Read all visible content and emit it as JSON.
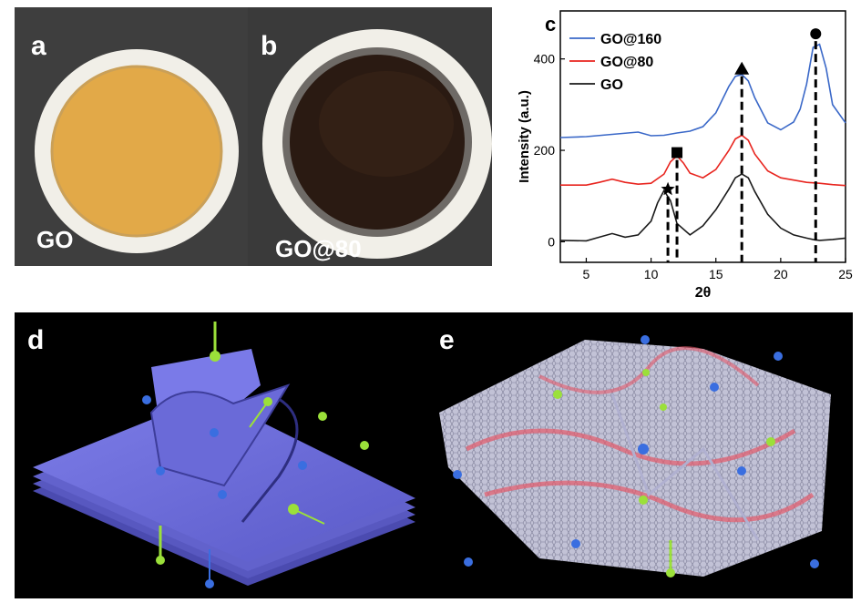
{
  "panels": {
    "a": {
      "letter": "a",
      "label": "GO"
    },
    "b": {
      "letter": "b",
      "label": "GO@80"
    },
    "c": {
      "letter": "c"
    },
    "d": {
      "letter": "d"
    },
    "e": {
      "letter": "e"
    }
  },
  "colors": {
    "go": "#1a1a1a",
    "go80": "#e8251f",
    "go160": "#3a68c8",
    "membrane_go": "#e2a948",
    "membrane_go80": "#2a1a12",
    "sheet_d": "#6f6fe0",
    "sheet_e": "#d8d8ee",
    "ball_green": "#9be03a",
    "ball_blue": "#3a6ee0"
  },
  "chart_data": {
    "type": "line",
    "title": "",
    "xlabel": "2θ",
    "ylabel": "Intensity (a.u.)",
    "xlim": [
      3,
      25
    ],
    "ylim": [
      -45,
      505
    ],
    "xticks": [
      5,
      10,
      15,
      20,
      25
    ],
    "yticks": [
      0,
      200,
      400
    ],
    "legend": [
      "GO@160",
      "GO@80",
      "GO"
    ],
    "series": [
      {
        "name": "GO",
        "x": [
          3,
          5,
          6,
          7,
          8,
          9,
          10,
          10.5,
          11,
          11.5,
          12,
          13,
          14,
          15,
          16,
          16.5,
          17,
          17.5,
          18,
          19,
          20,
          21,
          22,
          22.5,
          23,
          24,
          25
        ],
        "values": [
          3,
          2,
          10,
          18,
          10,
          15,
          45,
          85,
          112,
          90,
          40,
          15,
          35,
          70,
          115,
          140,
          148,
          140,
          110,
          60,
          30,
          15,
          8,
          5,
          3,
          5,
          8
        ]
      },
      {
        "name": "GO@80",
        "x": [
          3,
          5,
          6,
          7,
          8,
          9,
          10,
          11,
          11.5,
          12,
          12.5,
          13,
          14,
          15,
          16,
          16.5,
          17,
          17.5,
          18,
          19,
          20,
          21,
          22,
          23,
          24,
          25
        ],
        "values": [
          124,
          124,
          130,
          137,
          130,
          126,
          128,
          148,
          175,
          188,
          172,
          150,
          140,
          158,
          200,
          225,
          233,
          222,
          192,
          155,
          140,
          135,
          130,
          128,
          125,
          123
        ]
      },
      {
        "name": "GO@160",
        "x": [
          3,
          5,
          7,
          9,
          10,
          11,
          12,
          13,
          14,
          15,
          16,
          16.5,
          17,
          17.5,
          18,
          19,
          20,
          21,
          21.5,
          22,
          22.5,
          23,
          23.5,
          24,
          25
        ],
        "values": [
          228,
          230,
          235,
          240,
          232,
          233,
          238,
          242,
          252,
          282,
          340,
          362,
          366,
          352,
          315,
          260,
          245,
          262,
          290,
          345,
          425,
          432,
          380,
          300,
          260
        ]
      }
    ],
    "markers": [
      {
        "shape": "star",
        "x": 11.3,
        "y_top": 115
      },
      {
        "shape": "square",
        "x": 12.0,
        "y_top": 195
      },
      {
        "shape": "triangle",
        "x": 17.0,
        "y_top": 378
      },
      {
        "shape": "circle",
        "x": 22.7,
        "y_top": 455
      }
    ]
  }
}
